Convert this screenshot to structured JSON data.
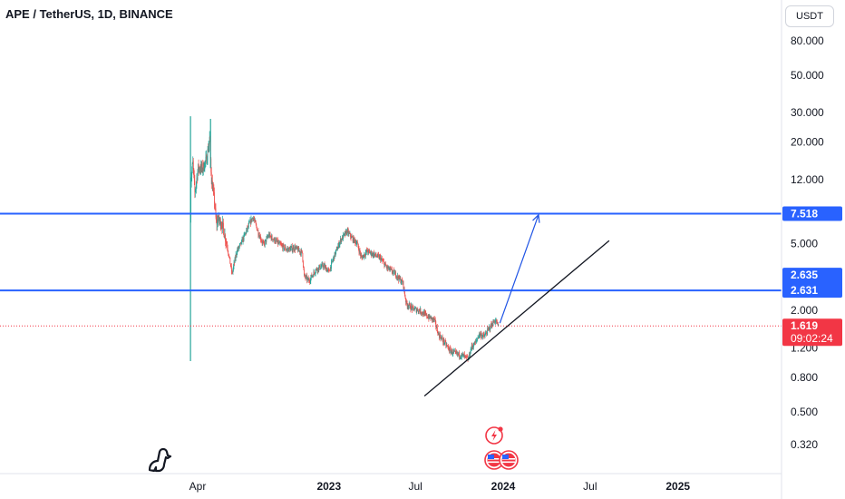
{
  "header": {
    "title": "APE / TetherUS, 1D, BINANCE",
    "currency_button": "USDT"
  },
  "colors": {
    "up": "#26a69a",
    "down": "#ef5350",
    "level_line": "#2962ff",
    "trend_line": "#131722",
    "arrow": "#1e53e5",
    "last_price": "#f23645"
  },
  "chart_data": {
    "type": "candlestick",
    "scale": "log",
    "ylim": [
      0.27,
      115
    ],
    "y_ticks": [
      {
        "value": 80,
        "label": "80.000"
      },
      {
        "value": 50,
        "label": "50.000"
      },
      {
        "value": 30,
        "label": "30.000"
      },
      {
        "value": 20,
        "label": "20.000"
      },
      {
        "value": 12,
        "label": "12.000"
      },
      {
        "value": 5,
        "label": "5.000"
      },
      {
        "value": 2,
        "label": "2.000"
      },
      {
        "value": 1.2,
        "label": "1.200"
      },
      {
        "value": 0.8,
        "label": "0.800"
      },
      {
        "value": 0.5,
        "label": "0.500"
      },
      {
        "value": 0.32,
        "label": "0.320"
      }
    ],
    "x_ticks": [
      {
        "date": "2022-04-01",
        "label": "Apr",
        "bold": false
      },
      {
        "date": "2023-01-01",
        "label": "2023",
        "bold": true
      },
      {
        "date": "2023-07-01",
        "label": "Jul",
        "bold": false
      },
      {
        "date": "2024-01-01",
        "label": "2024",
        "bold": true
      },
      {
        "date": "2024-07-01",
        "label": "Jul",
        "bold": false
      },
      {
        "date": "2025-01-01",
        "label": "2025",
        "bold": true
      }
    ],
    "price_path": [
      [
        "2022-03-17",
        7.5
      ],
      [
        "2022-03-18",
        12
      ],
      [
        "2022-03-22",
        15
      ],
      [
        "2022-03-26",
        10
      ],
      [
        "2022-04-02",
        14
      ],
      [
        "2022-04-12",
        14
      ],
      [
        "2022-04-20",
        16
      ],
      [
        "2022-04-26",
        21
      ],
      [
        "2022-04-30",
        12
      ],
      [
        "2022-05-06",
        9
      ],
      [
        "2022-05-10",
        6.5
      ],
      [
        "2022-05-13",
        7
      ],
      [
        "2022-05-22",
        6.5
      ],
      [
        "2022-06-01",
        5
      ],
      [
        "2022-06-12",
        3.3
      ],
      [
        "2022-06-22",
        4.5
      ],
      [
        "2022-07-01",
        5
      ],
      [
        "2022-07-18",
        6.5
      ],
      [
        "2022-07-26",
        7.2
      ],
      [
        "2022-08-06",
        5.8
      ],
      [
        "2022-08-17",
        4.9
      ],
      [
        "2022-08-28",
        5.6
      ],
      [
        "2022-09-10",
        5.2
      ],
      [
        "2022-09-25",
        4.8
      ],
      [
        "2022-10-05",
        4.6
      ],
      [
        "2022-10-22",
        4.7
      ],
      [
        "2022-11-06",
        4.4
      ],
      [
        "2022-11-10",
        3.2
      ],
      [
        "2022-11-20",
        3.0
      ],
      [
        "2022-12-05",
        3.5
      ],
      [
        "2022-12-20",
        3.7
      ],
      [
        "2023-01-01",
        3.4
      ],
      [
        "2023-01-12",
        4.2
      ],
      [
        "2023-01-25",
        5.2
      ],
      [
        "2023-02-08",
        5.9
      ],
      [
        "2023-02-18",
        5.4
      ],
      [
        "2023-03-01",
        5.0
      ],
      [
        "2023-03-10",
        4.1
      ],
      [
        "2023-03-22",
        4.5
      ],
      [
        "2023-04-05",
        4.3
      ],
      [
        "2023-04-18",
        4.1
      ],
      [
        "2023-05-02",
        3.6
      ],
      [
        "2023-05-20",
        3.3
      ],
      [
        "2023-06-05",
        2.9
      ],
      [
        "2023-06-12",
        2.2
      ],
      [
        "2023-06-25",
        2.05
      ],
      [
        "2023-07-10",
        2.0
      ],
      [
        "2023-07-25",
        1.85
      ],
      [
        "2023-08-10",
        1.75
      ],
      [
        "2023-08-18",
        1.45
      ],
      [
        "2023-08-30",
        1.3
      ],
      [
        "2023-09-12",
        1.15
      ],
      [
        "2023-09-25",
        1.1
      ],
      [
        "2023-10-08",
        1.08
      ],
      [
        "2023-10-20",
        1.02
      ],
      [
        "2023-10-26",
        1.2
      ],
      [
        "2023-11-05",
        1.3
      ],
      [
        "2023-11-12",
        1.45
      ],
      [
        "2023-11-22",
        1.4
      ],
      [
        "2023-12-05",
        1.6
      ],
      [
        "2023-12-15",
        1.75
      ],
      [
        "2023-12-22",
        1.619
      ]
    ],
    "levels": [
      {
        "value": 7.518,
        "label": "7.518"
      },
      {
        "value": 2.631,
        "label": "2.631"
      },
      {
        "value": 2.635,
        "label": "2.635"
      }
    ],
    "last_price": {
      "value": 1.619,
      "label": "1.619",
      "countdown": "09:02:24"
    },
    "trend_line": [
      [
        "2023-07-20",
        0.62
      ],
      [
        "2024-08-10",
        5.2
      ]
    ],
    "arrow": [
      [
        "2023-12-25",
        1.68
      ],
      [
        "2024-03-15",
        7.4
      ]
    ],
    "wick_extremes": {
      "date": "2022-03-17",
      "high": 28.5,
      "low": 1.0,
      "peak_date": "2022-04-28",
      "peak_high": 27.5
    }
  }
}
